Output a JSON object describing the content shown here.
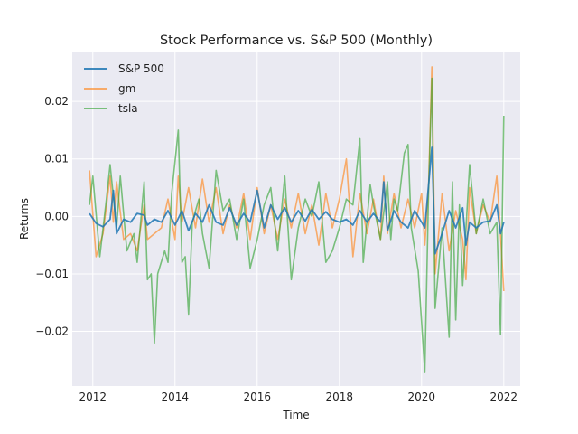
{
  "chart_data": {
    "type": "line",
    "title": "Stock Performance vs. S&P 500 (Monthly)",
    "xlabel": "Time",
    "ylabel": "Returns",
    "xlim": [
      2011.5,
      2022.4
    ],
    "ylim": [
      -0.0295,
      0.0285
    ],
    "xticks": [
      {
        "value": 2012,
        "label": "2012"
      },
      {
        "value": 2014,
        "label": "2014"
      },
      {
        "value": 2016,
        "label": "2016"
      },
      {
        "value": 2018,
        "label": "2018"
      },
      {
        "value": 2020,
        "label": "2020"
      },
      {
        "value": 2022,
        "label": "2022"
      }
    ],
    "yticks": [
      {
        "value": -0.02,
        "label": "−0.02"
      },
      {
        "value": -0.01,
        "label": "−0.01"
      },
      {
        "value": 0.0,
        "label": "0.00"
      },
      {
        "value": 0.01,
        "label": "0.01"
      },
      {
        "value": 0.02,
        "label": "0.02"
      }
    ],
    "grid": true,
    "legend_position": "top-left",
    "series": [
      {
        "name": "S&P 500",
        "color": "#1f77b4",
        "points": [
          [
            2011.92,
            0.0005
          ],
          [
            2012.08,
            -0.0012
          ],
          [
            2012.25,
            -0.0018
          ],
          [
            2012.42,
            -0.0005
          ],
          [
            2012.5,
            0.0045
          ],
          [
            2012.58,
            -0.003
          ],
          [
            2012.75,
            -0.0005
          ],
          [
            2012.92,
            -0.001
          ],
          [
            2013.08,
            0.0005
          ],
          [
            2013.25,
            0.0002
          ],
          [
            2013.33,
            -0.0015
          ],
          [
            2013.5,
            -0.0005
          ],
          [
            2013.67,
            -0.001
          ],
          [
            2013.83,
            0.001
          ],
          [
            2014.0,
            -0.0015
          ],
          [
            2014.17,
            0.001
          ],
          [
            2014.33,
            -0.0025
          ],
          [
            2014.5,
            0.0005
          ],
          [
            2014.67,
            -0.001
          ],
          [
            2014.83,
            0.002
          ],
          [
            2015.0,
            -0.001
          ],
          [
            2015.17,
            -0.0015
          ],
          [
            2015.33,
            0.0015
          ],
          [
            2015.5,
            -0.0015
          ],
          [
            2015.67,
            0.0005
          ],
          [
            2015.83,
            -0.001
          ],
          [
            2016.0,
            0.0045
          ],
          [
            2016.17,
            -0.002
          ],
          [
            2016.33,
            0.002
          ],
          [
            2016.5,
            -0.0005
          ],
          [
            2016.67,
            0.0015
          ],
          [
            2016.83,
            -0.001
          ],
          [
            2017.0,
            0.001
          ],
          [
            2017.17,
            -0.0008
          ],
          [
            2017.33,
            0.0012
          ],
          [
            2017.5,
            -0.0005
          ],
          [
            2017.67,
            0.0008
          ],
          [
            2017.83,
            -0.0005
          ],
          [
            2018.0,
            -0.001
          ],
          [
            2018.17,
            -0.0005
          ],
          [
            2018.33,
            -0.0015
          ],
          [
            2018.5,
            0.001
          ],
          [
            2018.67,
            -0.001
          ],
          [
            2018.83,
            0.0005
          ],
          [
            2019.0,
            -0.001
          ],
          [
            2019.08,
            0.006
          ],
          [
            2019.17,
            -0.0025
          ],
          [
            2019.33,
            0.001
          ],
          [
            2019.5,
            -0.001
          ],
          [
            2019.67,
            -0.002
          ],
          [
            2019.83,
            0.001
          ],
          [
            2020.0,
            -0.001
          ],
          [
            2020.08,
            -0.002
          ],
          [
            2020.25,
            0.012
          ],
          [
            2020.33,
            -0.0065
          ],
          [
            2020.5,
            -0.003
          ],
          [
            2020.67,
            0.001
          ],
          [
            2020.83,
            -0.002
          ],
          [
            2021.0,
            0.0015
          ],
          [
            2021.08,
            -0.005
          ],
          [
            2021.17,
            -0.001
          ],
          [
            2021.33,
            -0.002
          ],
          [
            2021.5,
            -0.001
          ],
          [
            2021.67,
            -0.0008
          ],
          [
            2021.83,
            0.002
          ],
          [
            2021.92,
            -0.003
          ],
          [
            2022.0,
            -0.001
          ]
        ]
      },
      {
        "name": "gm",
        "color": "#ff7f0e",
        "points": [
          [
            2011.92,
            0.008
          ],
          [
            2012.08,
            -0.007
          ],
          [
            2012.25,
            -0.003
          ],
          [
            2012.42,
            0.007
          ],
          [
            2012.5,
            -0.001
          ],
          [
            2012.58,
            0.006
          ],
          [
            2012.75,
            -0.004
          ],
          [
            2012.92,
            -0.003
          ],
          [
            2013.08,
            -0.006
          ],
          [
            2013.25,
            0.002
          ],
          [
            2013.33,
            -0.004
          ],
          [
            2013.5,
            -0.003
          ],
          [
            2013.67,
            -0.002
          ],
          [
            2013.83,
            0.003
          ],
          [
            2014.0,
            -0.004
          ],
          [
            2014.08,
            0.007
          ],
          [
            2014.17,
            -0.001
          ],
          [
            2014.33,
            0.005
          ],
          [
            2014.5,
            -0.002
          ],
          [
            2014.67,
            0.0065
          ],
          [
            2014.83,
            -0.001
          ],
          [
            2015.0,
            0.005
          ],
          [
            2015.17,
            -0.003
          ],
          [
            2015.33,
            0.002
          ],
          [
            2015.5,
            -0.002
          ],
          [
            2015.67,
            0.004
          ],
          [
            2015.83,
            -0.004
          ],
          [
            2016.0,
            0.005
          ],
          [
            2016.17,
            -0.003
          ],
          [
            2016.33,
            0.002
          ],
          [
            2016.5,
            -0.004
          ],
          [
            2016.67,
            0.003
          ],
          [
            2016.83,
            -0.002
          ],
          [
            2017.0,
            0.004
          ],
          [
            2017.17,
            -0.003
          ],
          [
            2017.33,
            0.002
          ],
          [
            2017.5,
            -0.005
          ],
          [
            2017.67,
            0.004
          ],
          [
            2017.83,
            -0.002
          ],
          [
            2018.0,
            0.003
          ],
          [
            2018.17,
            0.01
          ],
          [
            2018.33,
            -0.007
          ],
          [
            2018.5,
            0.004
          ],
          [
            2018.67,
            -0.003
          ],
          [
            2018.83,
            0.003
          ],
          [
            2019.0,
            -0.004
          ],
          [
            2019.08,
            0.007
          ],
          [
            2019.17,
            -0.003
          ],
          [
            2019.33,
            0.004
          ],
          [
            2019.5,
            -0.002
          ],
          [
            2019.67,
            0.003
          ],
          [
            2019.83,
            -0.002
          ],
          [
            2020.0,
            0.004
          ],
          [
            2020.08,
            -0.005
          ],
          [
            2020.17,
            0.005
          ],
          [
            2020.25,
            0.026
          ],
          [
            2020.33,
            -0.01
          ],
          [
            2020.5,
            0.004
          ],
          [
            2020.67,
            -0.006
          ],
          [
            2020.83,
            0.001
          ],
          [
            2021.0,
            -0.004
          ],
          [
            2021.08,
            -0.011
          ],
          [
            2021.17,
            0.005
          ],
          [
            2021.33,
            -0.003
          ],
          [
            2021.5,
            0.002
          ],
          [
            2021.67,
            -0.001
          ],
          [
            2021.83,
            0.007
          ],
          [
            2021.92,
            -0.003
          ],
          [
            2022.0,
            -0.013
          ]
        ]
      },
      {
        "name": "tsla",
        "color": "#2ca02c",
        "points": [
          [
            2011.92,
            0.002
          ],
          [
            2012.0,
            0.007
          ],
          [
            2012.17,
            -0.007
          ],
          [
            2012.33,
            0.003
          ],
          [
            2012.42,
            0.009
          ],
          [
            2012.58,
            -0.002
          ],
          [
            2012.67,
            0.007
          ],
          [
            2012.83,
            -0.006
          ],
          [
            2013.0,
            -0.003
          ],
          [
            2013.08,
            -0.008
          ],
          [
            2013.25,
            0.006
          ],
          [
            2013.33,
            -0.011
          ],
          [
            2013.42,
            -0.01
          ],
          [
            2013.5,
            -0.022
          ],
          [
            2013.58,
            -0.01
          ],
          [
            2013.75,
            -0.006
          ],
          [
            2013.83,
            -0.008
          ],
          [
            2013.92,
            0.004
          ],
          [
            2014.08,
            0.015
          ],
          [
            2014.17,
            -0.008
          ],
          [
            2014.25,
            -0.007
          ],
          [
            2014.33,
            -0.017
          ],
          [
            2014.42,
            -0.001
          ],
          [
            2014.58,
            0.003
          ],
          [
            2014.67,
            -0.003
          ],
          [
            2014.83,
            -0.009
          ],
          [
            2015.0,
            0.008
          ],
          [
            2015.17,
            0.001
          ],
          [
            2015.33,
            0.003
          ],
          [
            2015.5,
            -0.004
          ],
          [
            2015.67,
            0.003
          ],
          [
            2015.83,
            -0.009
          ],
          [
            2016.0,
            -0.004
          ],
          [
            2016.17,
            0.002
          ],
          [
            2016.33,
            0.005
          ],
          [
            2016.5,
            -0.006
          ],
          [
            2016.67,
            0.007
          ],
          [
            2016.83,
            -0.011
          ],
          [
            2017.0,
            -0.002
          ],
          [
            2017.17,
            0.003
          ],
          [
            2017.33,
            0.0
          ],
          [
            2017.5,
            0.006
          ],
          [
            2017.67,
            -0.008
          ],
          [
            2017.83,
            -0.006
          ],
          [
            2018.0,
            -0.002
          ],
          [
            2018.17,
            0.003
          ],
          [
            2018.33,
            0.002
          ],
          [
            2018.5,
            0.0135
          ],
          [
            2018.58,
            -0.008
          ],
          [
            2018.75,
            0.0055
          ],
          [
            2018.83,
            0.002
          ],
          [
            2019.0,
            -0.004
          ],
          [
            2019.17,
            0.006
          ],
          [
            2019.25,
            -0.004
          ],
          [
            2019.33,
            0.003
          ],
          [
            2019.42,
            0.001
          ],
          [
            2019.58,
            0.011
          ],
          [
            2019.67,
            0.0125
          ],
          [
            2019.75,
            -0.002
          ],
          [
            2019.92,
            -0.0095
          ],
          [
            2020.08,
            -0.027
          ],
          [
            2020.17,
            0.004
          ],
          [
            2020.25,
            0.024
          ],
          [
            2020.33,
            -0.016
          ],
          [
            2020.5,
            -0.002
          ],
          [
            2020.67,
            -0.021
          ],
          [
            2020.75,
            0.006
          ],
          [
            2020.83,
            -0.018
          ],
          [
            2020.92,
            0.002
          ],
          [
            2021.0,
            -0.012
          ],
          [
            2021.17,
            0.009
          ],
          [
            2021.33,
            -0.003
          ],
          [
            2021.5,
            0.003
          ],
          [
            2021.67,
            -0.003
          ],
          [
            2021.83,
            -0.001
          ],
          [
            2021.92,
            -0.0205
          ],
          [
            2022.0,
            0.0175
          ]
        ]
      }
    ]
  }
}
